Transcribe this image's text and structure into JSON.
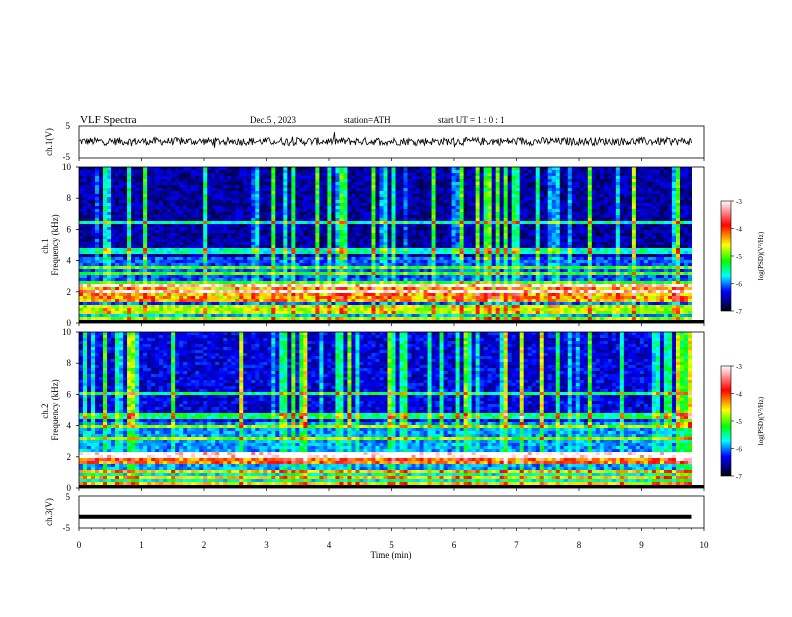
{
  "header": {
    "title": "VLF  Spectra",
    "date": "Dec.5  , 2023",
    "station": "station=ATH",
    "start": "start  UT  =   1  : 0   : 1"
  },
  "chart_data": [
    {
      "type": "line",
      "id": "ch1-waveform",
      "ylabel": "ch.1(V)",
      "ylim": [
        -5,
        5
      ],
      "yticks": [
        5,
        -5
      ],
      "x_range_min": [
        0,
        9.8
      ],
      "series": [
        {
          "kind": "noisy-trace",
          "mean": 0.2,
          "noise_amplitude": 2.5,
          "color": "#000000"
        }
      ]
    },
    {
      "type": "heatmap",
      "id": "ch1-spectrogram",
      "ylabel": "ch.1\nFrequency (kHz)",
      "ylim": [
        0,
        10
      ],
      "yticks": [
        0,
        2,
        4,
        6,
        8,
        10
      ],
      "colorbar": {
        "label": "log(PSD)(V²/Hz)",
        "ticks": [
          -3,
          -4,
          -5,
          -6,
          -7
        ],
        "range": [
          -7,
          -3
        ]
      },
      "features": {
        "intense_band_khz": [
          1.3,
          2.5
        ],
        "line_frequencies_khz": [
          0.3,
          0.7,
          0.9,
          1.1,
          2.0,
          2.5,
          3.2,
          3.6,
          4.6,
          6.5
        ],
        "noise_floor_logpsd": -6.5,
        "sferic_density": "high"
      }
    },
    {
      "type": "heatmap",
      "id": "ch2-spectrogram",
      "ylabel": "ch.2\nFrequency (kHz)",
      "ylim": [
        0,
        10
      ],
      "yticks": [
        0,
        2,
        4,
        6,
        8,
        10
      ],
      "colorbar": {
        "label": "log(PSD)(V²/Hz)",
        "ticks": [
          -3,
          -4,
          -5,
          -6,
          -7
        ],
        "range": [
          -7,
          -3
        ]
      },
      "features": {
        "intense_band_khz": [
          1.6,
          2.4
        ],
        "line_frequencies_khz": [
          0.3,
          0.7,
          1.0,
          2.0,
          2.2,
          3.2,
          4.0,
          4.6,
          6.0
        ],
        "noise_floor_logpsd": -6.3,
        "sferic_density": "high"
      }
    },
    {
      "type": "line",
      "id": "ch3-waveform",
      "ylabel": "ch.3(V)",
      "ylim": [
        -5,
        5
      ],
      "yticks": [
        5,
        -5
      ],
      "x_range_min": [
        0,
        9.8
      ],
      "series": [
        {
          "kind": "flat-thick",
          "value": -1.5,
          "color": "#000000"
        }
      ]
    }
  ],
  "xaxis": {
    "label": "Time  (min)",
    "ticks": [
      0,
      1,
      2,
      3,
      4,
      5,
      6,
      7,
      8,
      9,
      10
    ],
    "range": [
      0,
      10
    ]
  },
  "colormap": [
    "#ffffff",
    "#ff0000",
    "#ffff00",
    "#00ff00",
    "#00ffff",
    "#0000ff",
    "#000080",
    "#000000"
  ]
}
